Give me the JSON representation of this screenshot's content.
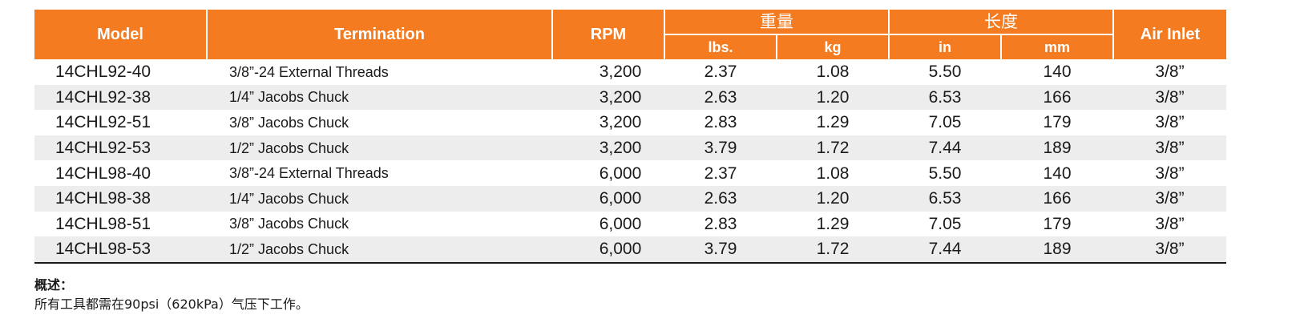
{
  "header": {
    "model": "Model",
    "termination": "Termination",
    "rpm": "RPM",
    "weight_group": "重量",
    "length_group": "长度",
    "air_inlet": "Air Inlet",
    "lbs": "lbs.",
    "kg": "kg",
    "in": "in",
    "mm": "mm"
  },
  "rows": [
    {
      "model": "14CHL92-40",
      "termination": "3/8”-24 External Threads",
      "rpm": "3,200",
      "lbs": "2.37",
      "kg": "1.08",
      "in": "5.50",
      "mm": "140",
      "air_inlet": "3/8”"
    },
    {
      "model": "14CHL92-38",
      "termination": "1/4” Jacobs Chuck",
      "rpm": "3,200",
      "lbs": "2.63",
      "kg": "1.20",
      "in": "6.53",
      "mm": "166",
      "air_inlet": "3/8”"
    },
    {
      "model": "14CHL92-51",
      "termination": "3/8” Jacobs Chuck",
      "rpm": "3,200",
      "lbs": "2.83",
      "kg": "1.29",
      "in": "7.05",
      "mm": "179",
      "air_inlet": "3/8”"
    },
    {
      "model": "14CHL92-53",
      "termination": "1/2” Jacobs Chuck",
      "rpm": "3,200",
      "lbs": "3.79",
      "kg": "1.72",
      "in": "7.44",
      "mm": "189",
      "air_inlet": "3/8”"
    },
    {
      "model": "14CHL98-40",
      "termination": "3/8”-24 External Threads",
      "rpm": "6,000",
      "lbs": "2.37",
      "kg": "1.08",
      "in": "5.50",
      "mm": "140",
      "air_inlet": "3/8”"
    },
    {
      "model": "14CHL98-38",
      "termination": "1/4” Jacobs Chuck",
      "rpm": "6,000",
      "lbs": "2.63",
      "kg": "1.20",
      "in": "6.53",
      "mm": "166",
      "air_inlet": "3/8”"
    },
    {
      "model": "14CHL98-51",
      "termination": "3/8” Jacobs Chuck",
      "rpm": "6,000",
      "lbs": "2.83",
      "kg": "1.29",
      "in": "7.05",
      "mm": "179",
      "air_inlet": "3/8”"
    },
    {
      "model": "14CHL98-53",
      "termination": "1/2” Jacobs Chuck",
      "rpm": "6,000",
      "lbs": "3.79",
      "kg": "1.72",
      "in": "7.44",
      "mm": "189",
      "air_inlet": "3/8”"
    }
  ],
  "note": {
    "title": "概述：",
    "text": "所有工具都需在90psi（620kPa）气压下工作。"
  },
  "colors": {
    "header_bg": "#f47b20",
    "row_alt_bg": "#ededed"
  }
}
